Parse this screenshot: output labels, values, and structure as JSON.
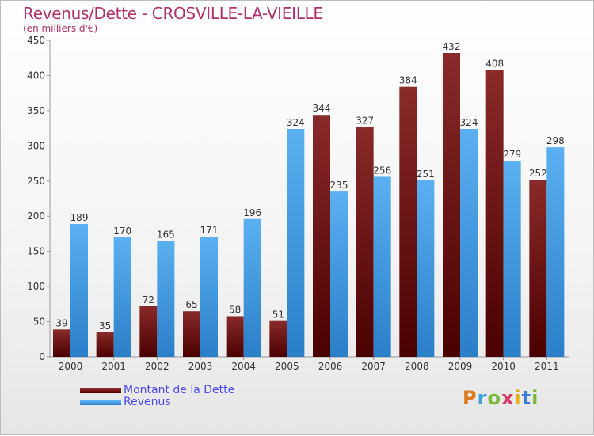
{
  "title": "Revenus/Dette - CROSVILLE-LA-VIEILLE",
  "subtitle": "(en milliers d'€)",
  "logo": "Proxiti",
  "colors": {
    "dette": "#7a1a1a",
    "revenus": "#4aa3e6",
    "title": "#b0306a"
  },
  "chart_data": {
    "type": "bar",
    "categories": [
      "2000",
      "2001",
      "2002",
      "2003",
      "2004",
      "2005",
      "2006",
      "2007",
      "2008",
      "2009",
      "2010",
      "2011"
    ],
    "series": [
      {
        "name": "Montant de la Dette",
        "values": [
          39,
          35,
          72,
          65,
          58,
          51,
          344,
          327,
          384,
          432,
          408,
          252
        ]
      },
      {
        "name": "Revenus",
        "values": [
          189,
          170,
          165,
          171,
          196,
          324,
          235,
          256,
          251,
          324,
          279,
          298
        ]
      }
    ],
    "ylim": [
      0,
      450
    ],
    "yticks": [
      0,
      50,
      100,
      150,
      200,
      250,
      300,
      350,
      400,
      450
    ],
    "grid": false,
    "legend": "bottom-left"
  }
}
